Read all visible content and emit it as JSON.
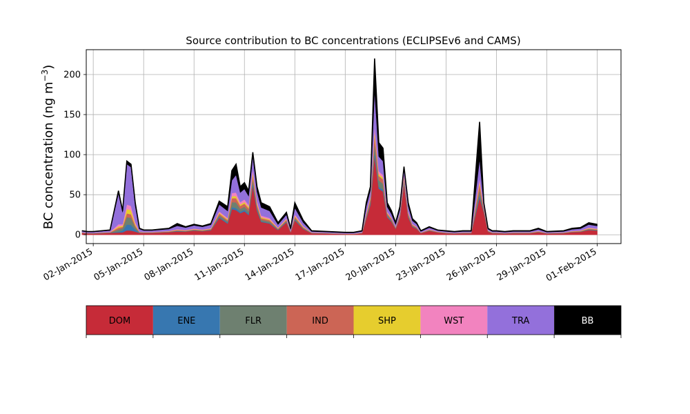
{
  "chart_data": {
    "type": "area",
    "title": "Source contribution to BC concentrations (ECLIPSEv6 and CAMS)",
    "ylabel": "BC concentration (ng m",
    "ylabel_sup": "−3",
    "ylabel_close": ")",
    "xlabel": "",
    "x_ticks": [
      "02-Jan-2015",
      "05-Jan-2015",
      "08-Jan-2015",
      "11-Jan-2015",
      "14-Jan-2015",
      "17-Jan-2015",
      "20-Jan-2015",
      "23-Jan-2015",
      "26-Jan-2015",
      "29-Jan-2015",
      "01-Feb-2015"
    ],
    "x_range": [
      "2015-01-01T14:00",
      "2015-02-02T10:00"
    ],
    "y_ticks": [
      0,
      50,
      100,
      150,
      200
    ],
    "ylim": [
      -11,
      231
    ],
    "grid": true,
    "total_series": {
      "x": [
        "2015-01-01T08:00",
        "2015-01-01T16:00",
        "2015-01-02T00:00",
        "2015-01-02T12:00",
        "2015-01-03T00:00",
        "2015-01-03T12:00",
        "2015-01-03T18:00",
        "2015-01-04T00:00",
        "2015-01-04T06:00",
        "2015-01-04T12:00",
        "2015-01-04T18:00",
        "2015-01-05T00:00",
        "2015-01-05T12:00",
        "2015-01-06T00:00",
        "2015-01-06T12:00",
        "2015-01-07T00:00",
        "2015-01-07T12:00",
        "2015-01-08T00:00",
        "2015-01-08T12:00",
        "2015-01-09T00:00",
        "2015-01-09T12:00",
        "2015-01-10T00:00",
        "2015-01-10T06:00",
        "2015-01-10T12:00",
        "2015-01-10T18:00",
        "2015-01-11T00:00",
        "2015-01-11T06:00",
        "2015-01-11T12:00",
        "2015-01-11T18:00",
        "2015-01-12T00:00",
        "2015-01-12T12:00",
        "2015-01-13T00:00",
        "2015-01-13T12:00",
        "2015-01-13T18:00",
        "2015-01-14T00:00",
        "2015-01-14T12:00",
        "2015-01-15T00:00",
        "2015-01-16T00:00",
        "2015-01-17T00:00",
        "2015-01-17T12:00",
        "2015-01-18T00:00",
        "2015-01-18T06:00",
        "2015-01-18T12:00",
        "2015-01-18T18:00",
        "2015-01-19T00:00",
        "2015-01-19T06:00",
        "2015-01-19T12:00",
        "2015-01-19T18:00",
        "2015-01-20T00:00",
        "2015-01-20T06:00",
        "2015-01-20T12:00",
        "2015-01-20T18:00",
        "2015-01-21T00:00",
        "2015-01-21T06:00",
        "2015-01-21T12:00",
        "2015-01-22T00:00",
        "2015-01-22T12:00",
        "2015-01-23T00:00",
        "2015-01-23T12:00",
        "2015-01-24T00:00",
        "2015-01-24T12:00",
        "2015-01-25T00:00",
        "2015-01-25T06:00",
        "2015-01-25T12:00",
        "2015-01-25T18:00",
        "2015-01-26T00:00",
        "2015-01-26T12:00",
        "2015-01-27T00:00",
        "2015-01-28T00:00",
        "2015-01-28T12:00",
        "2015-01-29T00:00",
        "2015-01-30T00:00",
        "2015-01-30T12:00",
        "2015-01-31T00:00",
        "2015-01-31T12:00",
        "2015-02-01T00:00"
      ],
      "values": [
        5,
        4,
        4,
        5,
        6,
        55,
        30,
        92,
        88,
        40,
        8,
        6,
        6,
        7,
        8,
        14,
        10,
        13,
        11,
        14,
        42,
        35,
        80,
        88,
        60,
        65,
        55,
        103,
        60,
        40,
        35,
        15,
        28,
        8,
        40,
        18,
        5,
        4,
        3,
        3,
        5,
        40,
        60,
        220,
        115,
        108,
        40,
        30,
        15,
        35,
        85,
        40,
        20,
        15,
        5,
        10,
        6,
        5,
        4,
        5,
        5,
        141,
        40,
        8,
        5,
        5,
        4,
        5,
        5,
        8,
        4,
        5,
        8,
        9,
        15,
        13
      ]
    },
    "series": [
      {
        "name": "DOM",
        "color": "#c62b38",
        "fractions": [
          0.45,
          0.42,
          0.4,
          0.4,
          0.4,
          0.05,
          0.1,
          0.06,
          0.06,
          0.1,
          0.3,
          0.4,
          0.4,
          0.4,
          0.4,
          0.3,
          0.4,
          0.4,
          0.4,
          0.4,
          0.5,
          0.4,
          0.4,
          0.35,
          0.45,
          0.45,
          0.45,
          0.6,
          0.5,
          0.4,
          0.4,
          0.4,
          0.55,
          0.4,
          0.45,
          0.4,
          0.4,
          0.4,
          0.3,
          0.3,
          0.4,
          0.5,
          0.62,
          0.45,
          0.5,
          0.5,
          0.55,
          0.55,
          0.5,
          0.6,
          0.75,
          0.55,
          0.5,
          0.5,
          0.4,
          0.5,
          0.5,
          0.4,
          0.4,
          0.4,
          0.4,
          0.33,
          0.7,
          0.5,
          0.4,
          0.4,
          0.4,
          0.4,
          0.4,
          0.4,
          0.4,
          0.4,
          0.4,
          0.4,
          0.4,
          0.4
        ]
      },
      {
        "name": "ENE",
        "color": "#3777b0",
        "fractions": [
          0.02,
          0.02,
          0.02,
          0.02,
          0.02,
          0.02,
          0.08,
          0.08,
          0.08,
          0.06,
          0.03,
          0.02,
          0.02,
          0.02,
          0.02,
          0.02,
          0.02,
          0.02,
          0.02,
          0.02,
          0.03,
          0.03,
          0.03,
          0.03,
          0.03,
          0.03,
          0.03,
          0.03,
          0.03,
          0.02,
          0.02,
          0.02,
          0.02,
          0.02,
          0.02,
          0.02,
          0.02,
          0.02,
          0.02,
          0.02,
          0.02,
          0.02,
          0.02,
          0.02,
          0.02,
          0.02,
          0.02,
          0.02,
          0.02,
          0.02,
          0.02,
          0.02,
          0.02,
          0.02,
          0.02,
          0.02,
          0.02,
          0.02,
          0.02,
          0.02,
          0.02,
          0.02,
          0.02,
          0.02,
          0.02,
          0.02,
          0.02,
          0.02,
          0.02,
          0.02,
          0.02,
          0.02,
          0.02,
          0.02,
          0.02,
          0.02
        ]
      },
      {
        "name": "FLR",
        "color": "#6e8070",
        "fractions": [
          0.05,
          0.05,
          0.05,
          0.05,
          0.05,
          0.05,
          0.1,
          0.1,
          0.1,
          0.08,
          0.05,
          0.05,
          0.05,
          0.05,
          0.05,
          0.05,
          0.05,
          0.05,
          0.05,
          0.05,
          0.05,
          0.05,
          0.08,
          0.08,
          0.06,
          0.06,
          0.06,
          0.05,
          0.05,
          0.05,
          0.05,
          0.05,
          0.05,
          0.05,
          0.05,
          0.05,
          0.05,
          0.05,
          0.05,
          0.05,
          0.05,
          0.05,
          0.06,
          0.05,
          0.07,
          0.07,
          0.05,
          0.05,
          0.05,
          0.05,
          0.04,
          0.05,
          0.05,
          0.05,
          0.05,
          0.05,
          0.05,
          0.05,
          0.05,
          0.05,
          0.05,
          0.05,
          0.05,
          0.05,
          0.05,
          0.05,
          0.05,
          0.05,
          0.05,
          0.05,
          0.05,
          0.05,
          0.05,
          0.05,
          0.05,
          0.05
        ]
      },
      {
        "name": "IND",
        "color": "#cc6555",
        "fractions": [
          0.05,
          0.05,
          0.05,
          0.05,
          0.05,
          0.04,
          0.05,
          0.05,
          0.05,
          0.05,
          0.05,
          0.05,
          0.05,
          0.05,
          0.05,
          0.05,
          0.05,
          0.05,
          0.05,
          0.05,
          0.05,
          0.05,
          0.06,
          0.06,
          0.06,
          0.06,
          0.06,
          0.05,
          0.05,
          0.05,
          0.05,
          0.05,
          0.05,
          0.05,
          0.05,
          0.05,
          0.05,
          0.05,
          0.05,
          0.05,
          0.05,
          0.05,
          0.05,
          0.05,
          0.05,
          0.05,
          0.05,
          0.05,
          0.05,
          0.05,
          0.04,
          0.05,
          0.05,
          0.05,
          0.05,
          0.05,
          0.05,
          0.05,
          0.05,
          0.05,
          0.05,
          0.05,
          0.05,
          0.05,
          0.05,
          0.05,
          0.05,
          0.05,
          0.05,
          0.05,
          0.05,
          0.05,
          0.05,
          0.05,
          0.05,
          0.05
        ]
      },
      {
        "name": "SHP",
        "color": "#e6cd2e",
        "fractions": [
          0.03,
          0.03,
          0.03,
          0.03,
          0.03,
          0.03,
          0.05,
          0.06,
          0.06,
          0.05,
          0.03,
          0.03,
          0.03,
          0.03,
          0.03,
          0.03,
          0.03,
          0.03,
          0.03,
          0.03,
          0.03,
          0.03,
          0.03,
          0.03,
          0.03,
          0.03,
          0.03,
          0.03,
          0.03,
          0.03,
          0.03,
          0.03,
          0.03,
          0.03,
          0.03,
          0.03,
          0.03,
          0.03,
          0.03,
          0.03,
          0.03,
          0.03,
          0.02,
          0.02,
          0.02,
          0.02,
          0.02,
          0.02,
          0.02,
          0.02,
          0.02,
          0.02,
          0.02,
          0.02,
          0.03,
          0.03,
          0.03,
          0.03,
          0.03,
          0.03,
          0.03,
          0.02,
          0.02,
          0.03,
          0.03,
          0.03,
          0.03,
          0.03,
          0.03,
          0.03,
          0.03,
          0.03,
          0.03,
          0.03,
          0.03,
          0.03
        ]
      },
      {
        "name": "WST",
        "color": "#f283bf",
        "fractions": [
          0.05,
          0.05,
          0.05,
          0.05,
          0.05,
          0.05,
          0.06,
          0.06,
          0.06,
          0.06,
          0.05,
          0.05,
          0.05,
          0.05,
          0.05,
          0.05,
          0.05,
          0.05,
          0.05,
          0.05,
          0.04,
          0.04,
          0.05,
          0.05,
          0.05,
          0.05,
          0.05,
          0.04,
          0.04,
          0.05,
          0.05,
          0.05,
          0.04,
          0.05,
          0.04,
          0.05,
          0.05,
          0.05,
          0.05,
          0.05,
          0.05,
          0.04,
          0.03,
          0.03,
          0.03,
          0.03,
          0.03,
          0.03,
          0.04,
          0.03,
          0.03,
          0.04,
          0.04,
          0.05,
          0.05,
          0.05,
          0.05,
          0.05,
          0.05,
          0.05,
          0.05,
          0.03,
          0.03,
          0.05,
          0.05,
          0.05,
          0.05,
          0.05,
          0.05,
          0.05,
          0.05,
          0.05,
          0.05,
          0.05,
          0.05,
          0.05
        ]
      },
      {
        "name": "TRA",
        "color": "#9370db",
        "fractions": [
          0.25,
          0.28,
          0.3,
          0.3,
          0.3,
          0.7,
          0.5,
          0.55,
          0.55,
          0.5,
          0.4,
          0.3,
          0.3,
          0.3,
          0.3,
          0.3,
          0.3,
          0.3,
          0.3,
          0.3,
          0.2,
          0.25,
          0.2,
          0.25,
          0.2,
          0.2,
          0.2,
          0.15,
          0.2,
          0.25,
          0.25,
          0.25,
          0.16,
          0.25,
          0.2,
          0.25,
          0.25,
          0.25,
          0.3,
          0.3,
          0.25,
          0.2,
          0.13,
          0.2,
          0.16,
          0.16,
          0.15,
          0.15,
          0.2,
          0.13,
          0.07,
          0.17,
          0.2,
          0.2,
          0.25,
          0.2,
          0.2,
          0.25,
          0.25,
          0.25,
          0.25,
          0.17,
          0.08,
          0.2,
          0.25,
          0.25,
          0.25,
          0.25,
          0.25,
          0.25,
          0.25,
          0.25,
          0.25,
          0.25,
          0.25,
          0.25
        ]
      },
      {
        "name": "BB",
        "color": "#000000",
        "fractions": [
          0.1,
          0.1,
          0.1,
          0.1,
          0.1,
          0.06,
          0.06,
          0.04,
          0.04,
          0.1,
          0.09,
          0.1,
          0.1,
          0.1,
          0.1,
          0.2,
          0.1,
          0.1,
          0.1,
          0.1,
          0.1,
          0.15,
          0.15,
          0.15,
          0.12,
          0.12,
          0.12,
          0.05,
          0.1,
          0.15,
          0.15,
          0.15,
          0.1,
          0.15,
          0.14,
          0.15,
          0.15,
          0.15,
          0.2,
          0.2,
          0.15,
          0.14,
          0.07,
          0.18,
          0.15,
          0.15,
          0.13,
          0.13,
          0.12,
          0.1,
          0.03,
          0.1,
          0.12,
          0.11,
          0.15,
          0.1,
          0.1,
          0.15,
          0.15,
          0.15,
          0.15,
          0.33,
          0.05,
          0.1,
          0.15,
          0.15,
          0.15,
          0.15,
          0.15,
          0.15,
          0.15,
          0.15,
          0.15,
          0.15,
          0.15,
          0.15
        ]
      }
    ],
    "legend": {
      "placement": "colorbar-below",
      "entries": [
        {
          "label": "DOM",
          "color": "#c62b38",
          "text_color": "#000000"
        },
        {
          "label": "ENE",
          "color": "#3777b0",
          "text_color": "#000000"
        },
        {
          "label": "FLR",
          "color": "#6e8070",
          "text_color": "#000000"
        },
        {
          "label": "IND",
          "color": "#cc6555",
          "text_color": "#000000"
        },
        {
          "label": "SHP",
          "color": "#e6cd2e",
          "text_color": "#000000"
        },
        {
          "label": "WST",
          "color": "#f283bf",
          "text_color": "#000000"
        },
        {
          "label": "TRA",
          "color": "#9370db",
          "text_color": "#000000"
        },
        {
          "label": "BB",
          "color": "#000000",
          "text_color": "#ffffff"
        }
      ]
    }
  }
}
